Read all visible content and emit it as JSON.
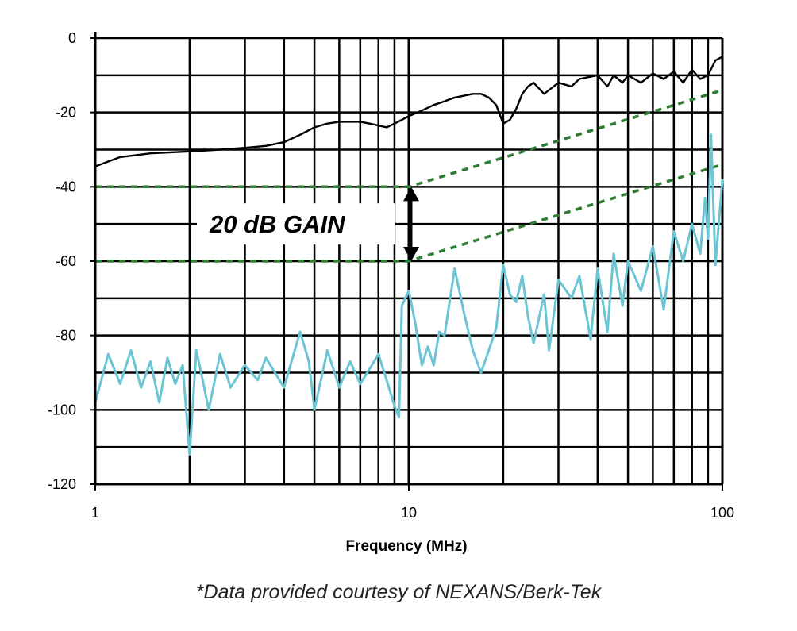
{
  "caption": "*Data provided courtesy of NEXANS/Berk-Tek",
  "chart_data": {
    "type": "line",
    "title": "",
    "xlabel": "Frequency (MHz)",
    "ylabel": "",
    "xscale": "log",
    "xlim": [
      1,
      100
    ],
    "ylim": [
      -120,
      0
    ],
    "x_ticks": [
      "1",
      "10",
      "100"
    ],
    "y_ticks": [
      "0",
      "-20",
      "-40",
      "-60",
      "-80",
      "-100",
      "-120"
    ],
    "grid": true,
    "colors": {
      "upper": "#000000",
      "lower": "#6cc5d5",
      "limit": "#2e7d32"
    },
    "series": [
      {
        "key": "upper",
        "x": [
          1,
          1.2,
          1.5,
          2,
          2.5,
          3,
          3.5,
          4,
          4.5,
          5,
          5.5,
          6,
          6.5,
          7,
          7.5,
          8,
          8.5,
          9,
          9.5,
          10,
          11,
          12,
          13,
          14,
          15,
          16,
          17,
          18,
          19,
          20,
          21,
          22,
          23,
          24,
          25,
          27,
          30,
          33,
          35,
          40,
          43,
          45,
          48,
          50,
          55,
          60,
          65,
          70,
          75,
          80,
          85,
          90,
          95,
          100
        ],
        "y": [
          -34.5,
          -32,
          -31,
          -30.5,
          -30,
          -29.5,
          -29,
          -28,
          -26,
          -24,
          -23,
          -22.5,
          -22.5,
          -22.5,
          -23,
          -23.5,
          -24,
          -23,
          -22,
          -21,
          -19.5,
          -18,
          -17,
          -16,
          -15.5,
          -15,
          -15,
          -16,
          -18,
          -23,
          -22,
          -19,
          -15,
          -13,
          -12,
          -15,
          -12,
          -13,
          -11,
          -10,
          -13,
          -10,
          -12,
          -10,
          -12,
          -9.5,
          -11,
          -9,
          -12,
          -8.5,
          -11,
          -10,
          -6,
          -5
        ]
      },
      {
        "key": "lower",
        "x": [
          1,
          1.1,
          1.2,
          1.3,
          1.4,
          1.5,
          1.6,
          1.7,
          1.8,
          1.9,
          2,
          2.1,
          2.2,
          2.3,
          2.5,
          2.7,
          3,
          3.3,
          3.5,
          4,
          4.5,
          4.8,
          5,
          5.5,
          6,
          6.5,
          7,
          7.5,
          8,
          8.5,
          9,
          9.3,
          9.5,
          10,
          10.5,
          11,
          11.5,
          12,
          12.5,
          13,
          14,
          15,
          16,
          17,
          18,
          19,
          20,
          21,
          22,
          23,
          24,
          25,
          27,
          28,
          30,
          33,
          35,
          38,
          40,
          43,
          45,
          48,
          50,
          55,
          60,
          65,
          70,
          75,
          80,
          85,
          88,
          90,
          92,
          95,
          100
        ],
        "y": [
          -98,
          -85,
          -93,
          -84,
          -94,
          -87,
          -98,
          -86,
          -93,
          -88,
          -112,
          -84,
          -92,
          -100,
          -85,
          -94,
          -88,
          -92,
          -86,
          -94,
          -79,
          -87,
          -100,
          -84,
          -94,
          -87,
          -93,
          -89,
          -85,
          -92,
          -99,
          -102,
          -72,
          -68,
          -77,
          -88,
          -83,
          -88,
          -79,
          -80,
          -62,
          -74,
          -84,
          -90,
          -84,
          -78,
          -61,
          -69,
          -71,
          -64,
          -75,
          -82,
          -69,
          -84,
          -65,
          -70,
          -64,
          -81,
          -62,
          -79,
          -58,
          -72,
          -60,
          -68,
          -56,
          -73,
          -52,
          -60,
          -50,
          -58,
          -43,
          -54,
          -26,
          -61,
          -38
        ]
      },
      {
        "key": "limit-upper",
        "x": [
          1,
          10,
          100
        ],
        "y": [
          -40,
          -40,
          -14
        ]
      },
      {
        "key": "limit-lower",
        "x": [
          1,
          10,
          100
        ],
        "y": [
          -60,
          -60,
          -34
        ]
      }
    ],
    "annotations": [
      {
        "text": "20 dB GAIN",
        "x": 10,
        "y_from": -40,
        "y_to": -60
      }
    ]
  }
}
